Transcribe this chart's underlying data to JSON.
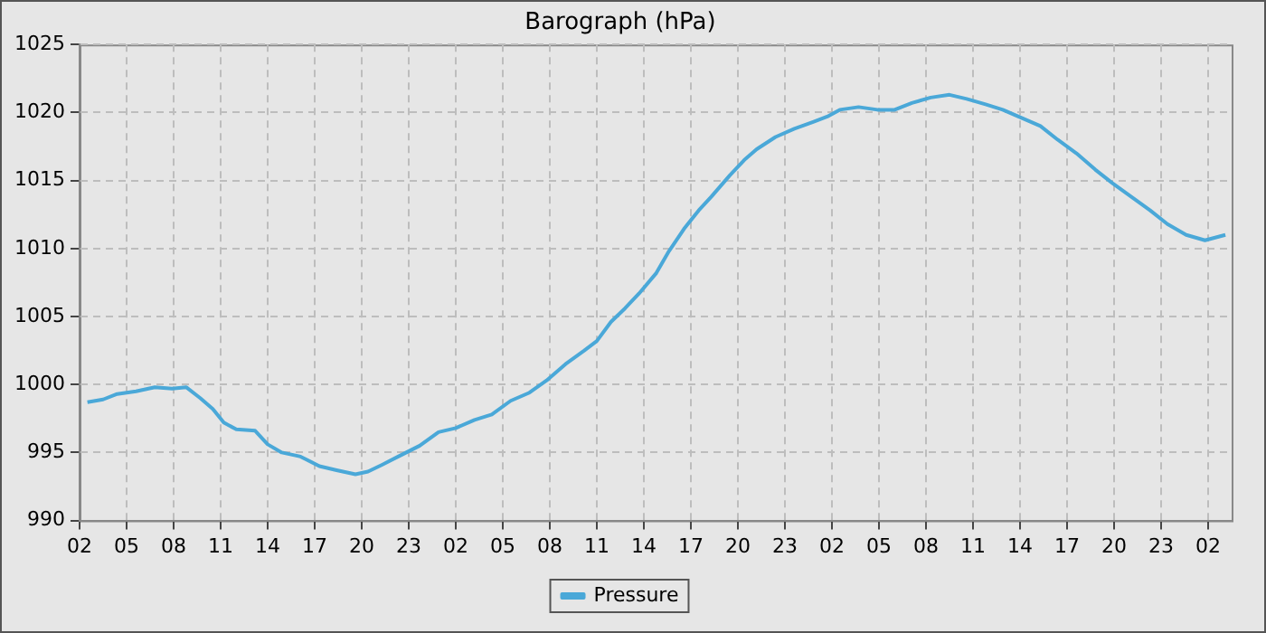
{
  "chart_data": {
    "type": "line",
    "title": "Barograph (hPa)",
    "xlim": [
      "--01-01T02:00",
      "--01-04T03:30"
    ],
    "xticks": [
      {
        "value": "--01-01T02:00",
        "label": "02"
      },
      {
        "value": "--01-01T05:00",
        "label": "05"
      },
      {
        "value": "--01-01T08:00",
        "label": "08"
      },
      {
        "value": "--01-01T11:00",
        "label": "11"
      },
      {
        "value": "--01-01T14:00",
        "label": "14"
      },
      {
        "value": "--01-01T17:00",
        "label": "17"
      },
      {
        "value": "--01-01T20:00",
        "label": "20"
      },
      {
        "value": "--01-01T23:00",
        "label": "23"
      },
      {
        "value": "--01-02T02:00",
        "label": "02"
      },
      {
        "value": "--01-02T05:00",
        "label": "05"
      },
      {
        "value": "--01-02T08:00",
        "label": "08"
      },
      {
        "value": "--01-02T11:00",
        "label": "11"
      },
      {
        "value": "--01-02T14:00",
        "label": "14"
      },
      {
        "value": "--01-02T17:00",
        "label": "17"
      },
      {
        "value": "--01-02T20:00",
        "label": "20"
      },
      {
        "value": "--01-02T23:00",
        "label": "23"
      },
      {
        "value": "--01-03T02:00",
        "label": "02"
      },
      {
        "value": "--01-03T05:00",
        "label": "05"
      },
      {
        "value": "--01-03T08:00",
        "label": "08"
      },
      {
        "value": "--01-03T11:00",
        "label": "11"
      },
      {
        "value": "--01-03T14:00",
        "label": "14"
      },
      {
        "value": "--01-03T17:00",
        "label": "17"
      },
      {
        "value": "--01-03T20:00",
        "label": "20"
      },
      {
        "value": "--01-03T23:00",
        "label": "23"
      },
      {
        "value": "--01-04T02:00",
        "label": "02"
      }
    ],
    "ylim": [
      990,
      1025
    ],
    "yticks": [
      990,
      995,
      1000,
      1005,
      1010,
      1015,
      1020,
      1025
    ],
    "grid": true,
    "legend": "bottom",
    "marker": "none",
    "line_style": "solid",
    "x": [
      "--01-01T02:30",
      "--01-01T03:30",
      "--01-01T04:24",
      "--01-01T05:36",
      "--01-01T06:48",
      "--01-01T07:54",
      "--01-01T08:48",
      "--01-01T09:42",
      "--01-01T10:30",
      "--01-01T11:12",
      "--01-01T12:00",
      "--01-01T13:12",
      "--01-01T14:00",
      "--01-01T14:54",
      "--01-01T16:06",
      "--01-01T17:18",
      "--01-01T18:24",
      "--01-01T19:36",
      "--01-01T20:24",
      "--01-01T21:18",
      "--01-01T22:30",
      "--01-01T23:42",
      "--01-02T00:54",
      "--01-02T02:00",
      "--01-02T03:12",
      "--01-02T04:18",
      "--01-02T05:30",
      "--01-02T06:42",
      "--01-02T07:48",
      "--01-02T09:00",
      "--01-02T10:12",
      "--01-02T11:00",
      "--01-02T11:54",
      "--01-02T12:48",
      "--01-02T13:42",
      "--01-02T14:48",
      "--01-02T15:36",
      "--01-02T16:36",
      "--01-02T17:30",
      "--01-02T18:18",
      "--01-02T19:30",
      "--01-02T20:24",
      "--01-02T21:12",
      "--01-02T22:24",
      "--01-02T23:36",
      "--01-03T00:48",
      "--01-03T01:42",
      "--01-03T02:30",
      "--01-03T03:42",
      "--01-03T04:54",
      "--01-03T06:00",
      "--01-03T07:06",
      "--01-03T08:18",
      "--01-03T09:30",
      "--01-03T10:36",
      "--01-03T11:48",
      "--01-03T12:54",
      "--01-03T14:06",
      "--01-03T15:18",
      "--01-03T16:24",
      "--01-03T17:36",
      "--01-03T18:48",
      "--01-03T19:54",
      "--01-03T21:06",
      "--01-03T22:18",
      "--01-03T23:24",
      "--01-04T00:36",
      "--01-04T01:48",
      "--01-04T03:06"
    ],
    "series": [
      {
        "name": "Pressure",
        "color": "#4aa8d8",
        "values": [
          998.7,
          998.9,
          999.3,
          999.5,
          999.8,
          999.7,
          999.8,
          999.0,
          998.2,
          997.2,
          996.7,
          996.6,
          995.6,
          995.0,
          994.7,
          994.0,
          993.7,
          993.4,
          993.6,
          994.1,
          994.8,
          995.5,
          996.5,
          996.8,
          997.4,
          997.8,
          998.8,
          999.4,
          1000.3,
          1001.5,
          1002.5,
          1003.2,
          1004.6,
          1005.6,
          1006.7,
          1008.2,
          1009.8,
          1011.5,
          1012.8,
          1013.8,
          1015.4,
          1016.5,
          1017.3,
          1018.2,
          1018.8,
          1019.3,
          1019.7,
          1020.2,
          1020.4,
          1020.2,
          1020.2,
          1020.7,
          1021.1,
          1021.3,
          1021.0,
          1020.6,
          1020.2,
          1019.6,
          1019.0,
          1018.0,
          1017.0,
          1015.8,
          1014.8,
          1013.8,
          1012.8,
          1011.8,
          1011.0,
          1010.6,
          1011.0
        ]
      }
    ]
  }
}
